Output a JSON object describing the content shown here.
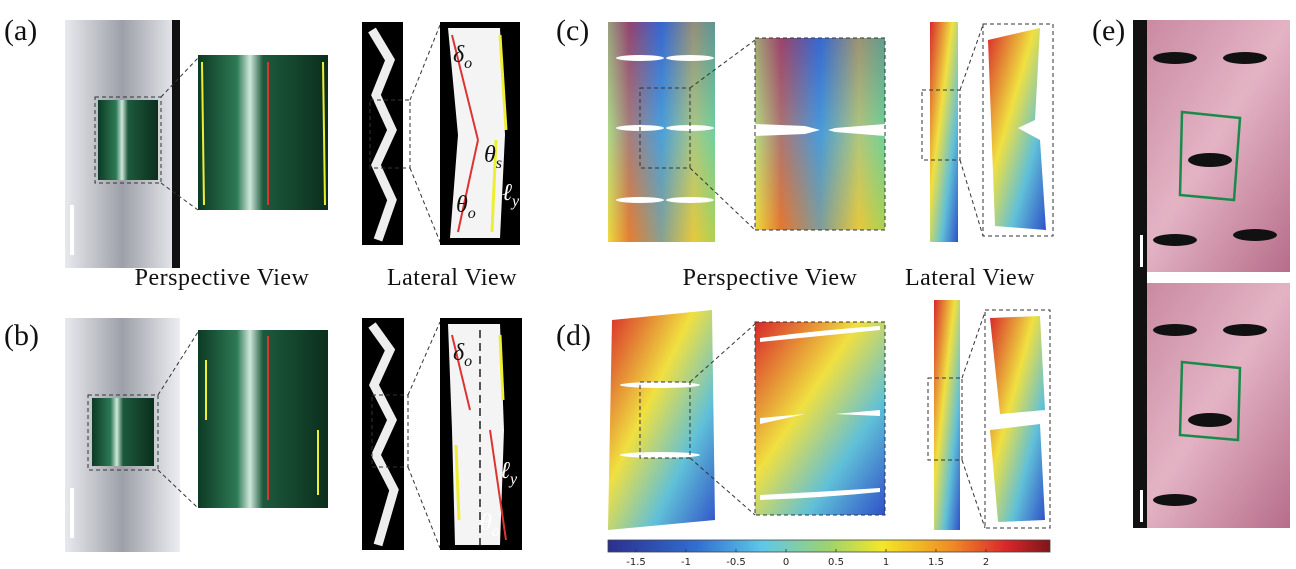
{
  "panels": {
    "a": "(a)",
    "b": "(b)",
    "c": "(c)",
    "d": "(d)",
    "e": "(e)"
  },
  "captions": {
    "perspective_top": "Perspective View",
    "lateral_top": "Lateral View",
    "perspective_bottom": "Perspective View",
    "lateral_bottom": "Lateral View"
  },
  "symbols_a": [
    {
      "symbol": "δ",
      "sub": "o"
    },
    {
      "symbol": "θ",
      "sub": "s"
    },
    {
      "symbol": "θ",
      "sub": "o"
    },
    {
      "symbol": "ℓ",
      "sub": "y"
    }
  ],
  "symbols_b": [
    {
      "symbol": "δ",
      "sub": "o"
    },
    {
      "symbol": "ℓ",
      "sub": "y"
    },
    {
      "symbol": "θ",
      "sub": "a"
    }
  ],
  "colorbar": {
    "lim": [
      -1.78,
      2.64
    ],
    "ticks": [
      -1.5,
      -1,
      -0.5,
      0,
      0.5,
      1,
      1.5,
      2
    ]
  }
}
